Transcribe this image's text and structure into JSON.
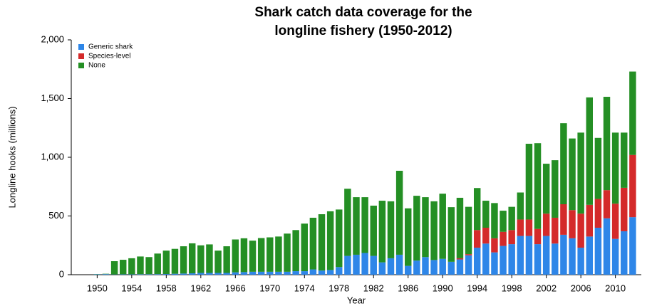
{
  "chart_data": {
    "type": "stacked-bar",
    "title": [
      "Shark catch data coverage for the",
      "longline fishery (1950-2012)"
    ],
    "xlabel": "Year",
    "ylabel": "Longline hooks (millions)",
    "x": [
      1950,
      1951,
      1952,
      1953,
      1954,
      1955,
      1956,
      1957,
      1958,
      1959,
      1960,
      1961,
      1962,
      1963,
      1964,
      1965,
      1966,
      1967,
      1968,
      1969,
      1970,
      1971,
      1972,
      1973,
      1974,
      1975,
      1976,
      1977,
      1978,
      1979,
      1980,
      1981,
      1982,
      1983,
      1984,
      1985,
      1986,
      1987,
      1988,
      1989,
      1990,
      1991,
      1992,
      1993,
      1994,
      1995,
      1996,
      1997,
      1998,
      1999,
      2000,
      2001,
      2002,
      2003,
      2004,
      2005,
      2006,
      2007,
      2008,
      2009,
      2010,
      2011,
      2012
    ],
    "series": [
      {
        "name": "Generic shark",
        "color": "#2e86e8",
        "values": [
          3,
          5,
          2,
          3,
          3,
          4,
          4,
          5,
          6,
          8,
          10,
          12,
          15,
          15,
          15,
          15,
          20,
          22,
          25,
          25,
          25,
          25,
          25,
          30,
          30,
          45,
          35,
          40,
          65,
          160,
          170,
          185,
          160,
          105,
          140,
          170,
          75,
          120,
          150,
          125,
          135,
          110,
          130,
          165,
          230,
          265,
          190,
          245,
          260,
          330,
          330,
          260,
          330,
          265,
          340,
          310,
          230,
          325,
          400,
          480,
          305,
          370,
          490
        ]
      },
      {
        "name": "Species-level",
        "color": "#d42a2a",
        "values": [
          0,
          0,
          0,
          0,
          0,
          0,
          0,
          0,
          0,
          0,
          0,
          0,
          0,
          0,
          0,
          0,
          0,
          0,
          0,
          0,
          0,
          0,
          0,
          0,
          0,
          0,
          0,
          0,
          0,
          0,
          0,
          0,
          0,
          0,
          0,
          0,
          0,
          0,
          0,
          0,
          0,
          0,
          10,
          10,
          150,
          135,
          120,
          120,
          120,
          140,
          140,
          130,
          190,
          220,
          260,
          240,
          290,
          270,
          245,
          240,
          300,
          370,
          530
        ]
      },
      {
        "name": "None",
        "color": "#248f24",
        "values": [
          2,
          3,
          113,
          124,
          137,
          151,
          146,
          175,
          199,
          212,
          232,
          255,
          235,
          243,
          190,
          227,
          280,
          288,
          265,
          287,
          293,
          300,
          325,
          350,
          405,
          440,
          480,
          500,
          490,
          572,
          490,
          475,
          428,
          525,
          485,
          715,
          490,
          552,
          510,
          500,
          555,
          465,
          515,
          403,
          358,
          230,
          300,
          180,
          198,
          230,
          645,
          730,
          425,
          490,
          690,
          610,
          690,
          915,
          520,
          795,
          605,
          470,
          710
        ]
      }
    ],
    "xlim": [
      1947,
      2013
    ],
    "xticks": [
      1950,
      1954,
      1958,
      1962,
      1966,
      1970,
      1974,
      1978,
      1982,
      1986,
      1990,
      1994,
      1998,
      2002,
      2006,
      2010
    ],
    "ylim": [
      0,
      2000
    ],
    "yticks": [
      0,
      500,
      {
        "value": 1000,
        "label": "1,000"
      },
      {
        "value": 1500,
        "label": "1,500"
      },
      {
        "value": 2000,
        "label": "2,000"
      }
    ],
    "legend": "upper-left"
  }
}
